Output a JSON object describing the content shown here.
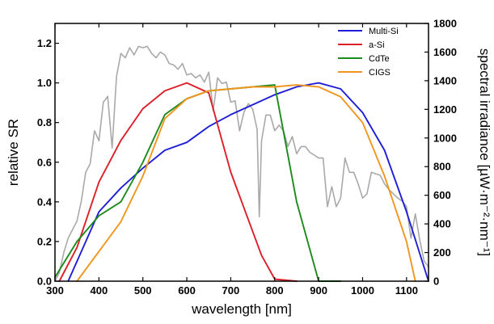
{
  "chart_data": {
    "type": "line",
    "title": "",
    "xlabel": "wavelength [nm]",
    "ylabel": "relative SR",
    "y2label": "spectral irradiance [µW·m⁻²·nm⁻¹]",
    "xlim": [
      300,
      1150
    ],
    "ylim": [
      0,
      1.3
    ],
    "y2lim": [
      0,
      1800
    ],
    "xticks": [
      300,
      400,
      500,
      600,
      700,
      800,
      900,
      1000,
      1100
    ],
    "yticks": [
      0.0,
      0.2,
      0.4,
      0.6,
      0.8,
      1.0,
      1.2
    ],
    "y2ticks": [
      0,
      200,
      400,
      600,
      800,
      1000,
      1200,
      1400,
      1600,
      1800
    ],
    "ytick_labels": [
      "0.0",
      "0.2",
      "0.4",
      "0.6",
      "0.8",
      "1.0",
      "1.2"
    ],
    "grid": false,
    "legend_position": "top-right",
    "series": [
      {
        "name": "Multi-Si",
        "axis": "left",
        "color": "#1f1fd6",
        "x": [
          330,
          350,
          400,
          450,
          500,
          550,
          600,
          650,
          700,
          750,
          800,
          850,
          900,
          950,
          1000,
          1050,
          1100,
          1150
        ],
        "y": [
          0.0,
          0.1,
          0.35,
          0.47,
          0.57,
          0.66,
          0.7,
          0.78,
          0.84,
          0.89,
          0.94,
          0.98,
          1.0,
          0.97,
          0.85,
          0.66,
          0.35,
          0.0
        ]
      },
      {
        "name": "a-Si",
        "axis": "left",
        "color": "#dd1f2a",
        "x": [
          310,
          350,
          400,
          450,
          500,
          550,
          600,
          650,
          700,
          750,
          770,
          800,
          850
        ],
        "y": [
          0.0,
          0.17,
          0.5,
          0.71,
          0.87,
          0.96,
          1.0,
          0.95,
          0.55,
          0.25,
          0.13,
          0.01,
          0.0
        ]
      },
      {
        "name": "CdTe",
        "axis": "left",
        "color": "#1d8a1d",
        "x": [
          300,
          350,
          400,
          450,
          500,
          550,
          600,
          650,
          700,
          750,
          800,
          850,
          900,
          950
        ],
        "y": [
          0.02,
          0.2,
          0.33,
          0.4,
          0.6,
          0.84,
          0.92,
          0.96,
          0.97,
          0.98,
          0.99,
          0.4,
          0.0,
          0.0
        ]
      },
      {
        "name": "CIGS",
        "axis": "left",
        "color": "#f0961e",
        "x": [
          350,
          400,
          450,
          500,
          550,
          600,
          650,
          700,
          750,
          800,
          850,
          900,
          950,
          1000,
          1050,
          1100,
          1120
        ],
        "y": [
          0.0,
          0.15,
          0.3,
          0.53,
          0.82,
          0.92,
          0.96,
          0.97,
          0.98,
          0.98,
          0.99,
          0.98,
          0.93,
          0.8,
          0.53,
          0.2,
          0.0
        ]
      },
      {
        "name": "",
        "axis": "right",
        "color": "#a9a9a9",
        "x": [
          300,
          310,
          320,
          330,
          340,
          350,
          360,
          370,
          380,
          390,
          400,
          410,
          420,
          430,
          440,
          450,
          460,
          470,
          480,
          490,
          500,
          510,
          520,
          530,
          540,
          550,
          560,
          570,
          580,
          590,
          600,
          610,
          620,
          630,
          640,
          650,
          660,
          670,
          680,
          690,
          700,
          710,
          720,
          730,
          740,
          750,
          760,
          765,
          770,
          780,
          790,
          800,
          810,
          820,
          830,
          840,
          850,
          860,
          870,
          880,
          890,
          900,
          910,
          920,
          930,
          940,
          950,
          960,
          970,
          980,
          990,
          1000,
          1010,
          1020,
          1030,
          1040,
          1050,
          1060,
          1070,
          1080,
          1090,
          1100,
          1110,
          1120,
          1130,
          1140,
          1150
        ],
        "y": [
          0,
          60,
          200,
          300,
          360,
          420,
          560,
          760,
          820,
          1050,
          980,
          1250,
          1290,
          930,
          1430,
          1590,
          1560,
          1630,
          1580,
          1640,
          1630,
          1640,
          1590,
          1560,
          1600,
          1580,
          1520,
          1510,
          1480,
          1520,
          1440,
          1450,
          1420,
          1440,
          1390,
          1460,
          1190,
          1420,
          1380,
          1390,
          1250,
          1260,
          1050,
          1180,
          1240,
          1200,
          1060,
          450,
          980,
          1160,
          1160,
          1050,
          1090,
          1050,
          940,
          1010,
          890,
          940,
          940,
          900,
          880,
          860,
          860,
          520,
          660,
          520,
          580,
          860,
          760,
          760,
          680,
          580,
          610,
          760,
          750,
          740,
          680,
          640,
          610,
          580,
          560,
          520,
          300,
          470,
          290,
          140,
          100
        ]
      }
    ]
  }
}
